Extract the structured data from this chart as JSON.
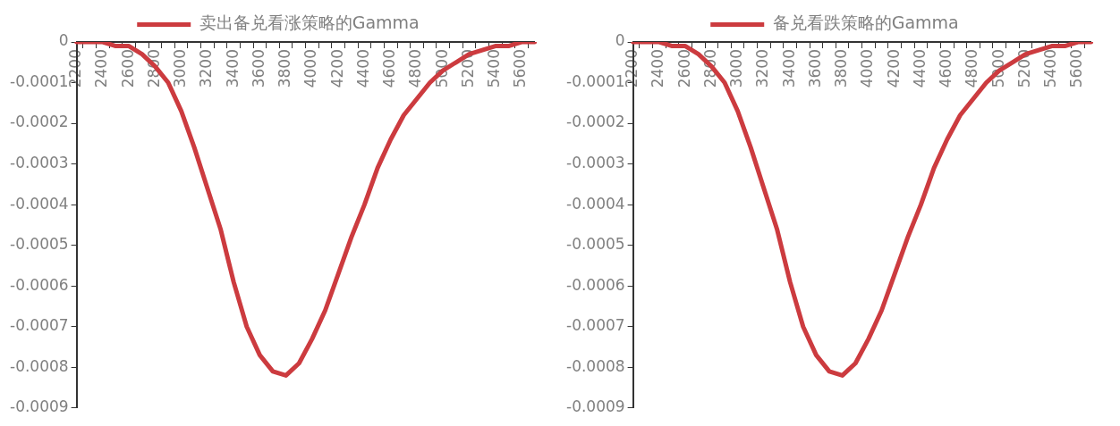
{
  "chart_data": [
    {
      "type": "line",
      "categories": [
        "2200",
        null,
        "2400",
        null,
        "2600",
        null,
        "2800",
        null,
        "3000",
        null,
        "3200",
        null,
        "3400",
        null,
        "3600",
        null,
        "3800",
        null,
        "4000",
        null,
        "4200",
        null,
        "4400",
        null,
        "4600",
        null,
        "4800",
        null,
        "5000",
        null,
        "5200",
        null,
        "5400",
        null,
        "5600",
        null
      ],
      "series": [
        {
          "name": "卖出备兑看涨策略的Gamma",
          "color": "#cc3b3f",
          "values": [
            0,
            0,
            0,
            -1e-05,
            -1e-05,
            -3e-05,
            -6e-05,
            -0.0001,
            -0.00017,
            -0.00026,
            -0.00036,
            -0.00046,
            -0.00059,
            -0.0007,
            -0.00077,
            -0.00081,
            -0.00082,
            -0.00079,
            -0.00073,
            -0.00066,
            -0.00057,
            -0.00048,
            -0.0004,
            -0.00031,
            -0.00024,
            -0.00018,
            -0.00014,
            -0.0001,
            -7e-05,
            -5e-05,
            -3e-05,
            -2e-05,
            -1e-05,
            -1e-05,
            0,
            0
          ]
        }
      ],
      "ylim": [
        -0.0009,
        0
      ],
      "yticks": [
        0,
        -0.0001,
        -0.0002,
        -0.0003,
        -0.0004,
        -0.0005,
        -0.0006,
        -0.0007,
        -0.0008,
        -0.0009
      ],
      "grid": false,
      "legend": "top",
      "marker": "none"
    },
    {
      "type": "line",
      "categories": [
        "2200",
        null,
        "2400",
        null,
        "2600",
        null,
        "2800",
        null,
        "3000",
        null,
        "3200",
        null,
        "3400",
        null,
        "3600",
        null,
        "3800",
        null,
        "4000",
        null,
        "4200",
        null,
        "4400",
        null,
        "4600",
        null,
        "4800",
        null,
        "5000",
        null,
        "5200",
        null,
        "5400",
        null,
        "5600",
        null
      ],
      "series": [
        {
          "name": "备兑看跌策略的Gamma",
          "color": "#cc3b3f",
          "values": [
            0,
            0,
            0,
            -1e-05,
            -1e-05,
            -3e-05,
            -6e-05,
            -0.0001,
            -0.00017,
            -0.00026,
            -0.00036,
            -0.00046,
            -0.00059,
            -0.0007,
            -0.00077,
            -0.00081,
            -0.00082,
            -0.00079,
            -0.00073,
            -0.00066,
            -0.00057,
            -0.00048,
            -0.0004,
            -0.00031,
            -0.00024,
            -0.00018,
            -0.00014,
            -0.0001,
            -7e-05,
            -5e-05,
            -3e-05,
            -2e-05,
            -1e-05,
            -1e-05,
            0,
            0
          ]
        }
      ],
      "ylim": [
        -0.0009,
        0
      ],
      "yticks": [
        0,
        -0.0001,
        -0.0002,
        -0.0003,
        -0.0004,
        -0.0005,
        -0.0006,
        -0.0007,
        -0.0008,
        -0.0009
      ],
      "grid": false,
      "legend": "top",
      "marker": "none"
    }
  ]
}
